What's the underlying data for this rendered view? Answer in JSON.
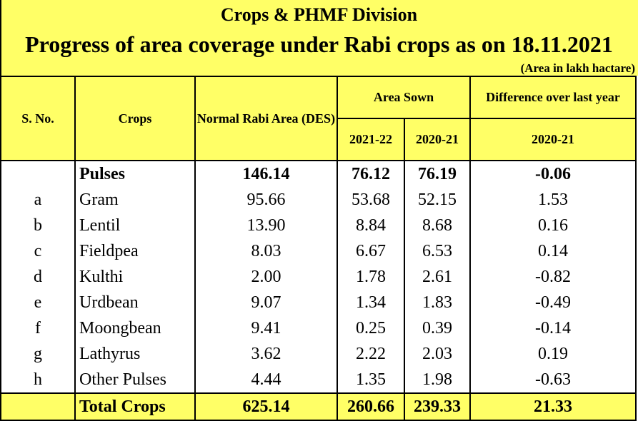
{
  "header": {
    "division": "Crops & PHMF Division",
    "title": "Progress of area coverage under Rabi crops as on 18.11.2021",
    "unit_note": "(Area in lakh hactare)"
  },
  "columns": {
    "sno": "S. No.",
    "crops": "Crops",
    "normal_area": "Normal Rabi Area (DES)",
    "area_sown": "Area Sown",
    "year_current": "2021-22",
    "year_previous": "2020-21",
    "difference": "Difference over last year",
    "difference_year": "2020-21"
  },
  "rows": [
    {
      "sno": "",
      "crop": "Pulses",
      "normal": "146.14",
      "sown_2021_22": "76.12",
      "sown_2020_21": "76.19",
      "diff": "-0.06"
    },
    {
      "sno": "a",
      "crop": "Gram",
      "normal": "95.66",
      "sown_2021_22": "53.68",
      "sown_2020_21": "52.15",
      "diff": "1.53"
    },
    {
      "sno": "b",
      "crop": "Lentil",
      "normal": "13.90",
      "sown_2021_22": "8.84",
      "sown_2020_21": "8.68",
      "diff": "0.16"
    },
    {
      "sno": "c",
      "crop": "Fieldpea",
      "normal": "8.03",
      "sown_2021_22": "6.67",
      "sown_2020_21": "6.53",
      "diff": "0.14"
    },
    {
      "sno": "d",
      "crop": "Kulthi",
      "normal": "2.00",
      "sown_2021_22": "1.78",
      "sown_2020_21": "2.61",
      "diff": "-0.82"
    },
    {
      "sno": "e",
      "crop": "Urdbean",
      "normal": "9.07",
      "sown_2021_22": "1.34",
      "sown_2020_21": "1.83",
      "diff": "-0.49"
    },
    {
      "sno": "f",
      "crop": "Moongbean",
      "normal": "9.41",
      "sown_2021_22": "0.25",
      "sown_2020_21": "0.39",
      "diff": "-0.14"
    },
    {
      "sno": "g",
      "crop": "Lathyrus",
      "normal": "3.62",
      "sown_2021_22": "2.22",
      "sown_2020_21": "2.03",
      "diff": "0.19"
    },
    {
      "sno": "h",
      "crop": "Other Pulses",
      "normal": "4.44",
      "sown_2021_22": "1.35",
      "sown_2020_21": "1.98",
      "diff": "-0.63"
    }
  ],
  "total": {
    "sno": "",
    "crop": "Total Crops",
    "normal": "625.14",
    "sown_2021_22": "260.66",
    "sown_2020_21": "239.33",
    "diff": "21.33"
  }
}
